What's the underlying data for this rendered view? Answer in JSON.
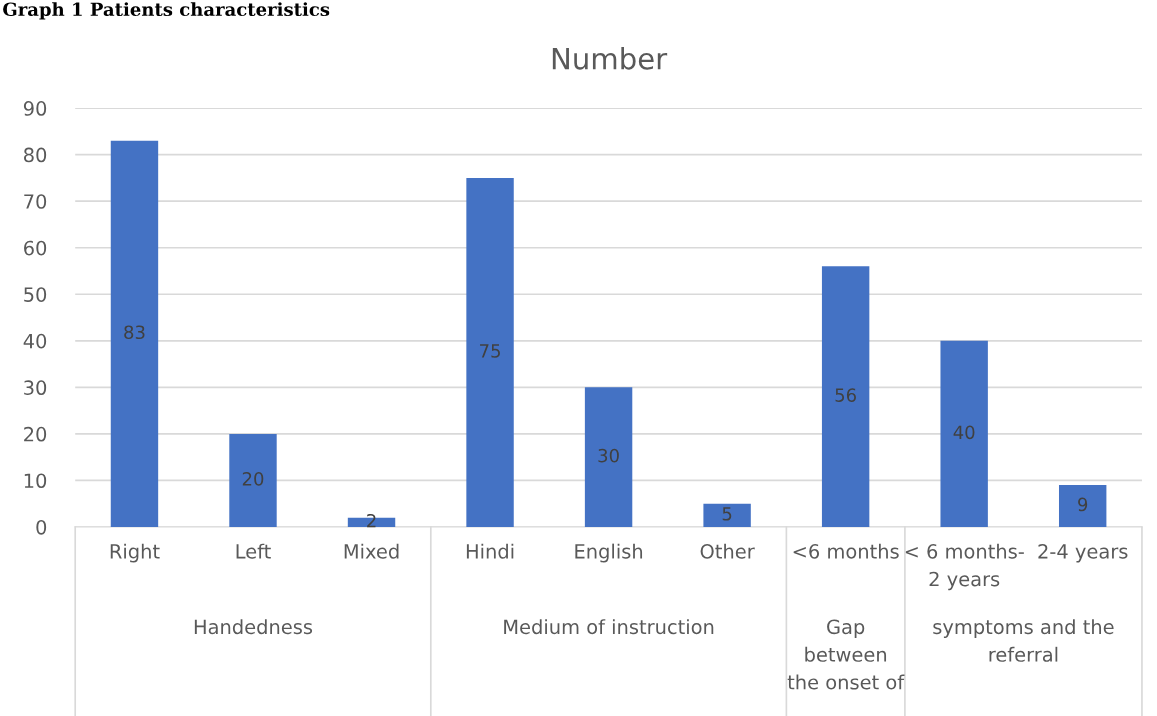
{
  "chart_data": {
    "type": "bar",
    "title": "Number",
    "categories": [
      "Right",
      "Left",
      "Mixed",
      "Hindi",
      "English",
      "Other",
      "<6 months",
      "< 6 months-\n2 years",
      "2-4 years"
    ],
    "values": [
      83,
      20,
      2,
      75,
      30,
      5,
      56,
      40,
      9
    ],
    "color": "#4472c4",
    "ylim": [
      0,
      90
    ],
    "yticks": [
      0,
      10,
      20,
      30,
      40,
      50,
      60,
      70,
      80,
      90
    ],
    "grid": "y",
    "data_labels": true,
    "annotations": [
      "Graph 1 Patients characteristics",
      "Handedness",
      "Medium of instruction",
      "Gap\nbetween\nthe onset of",
      "symptoms and the\nreferral"
    ]
  }
}
